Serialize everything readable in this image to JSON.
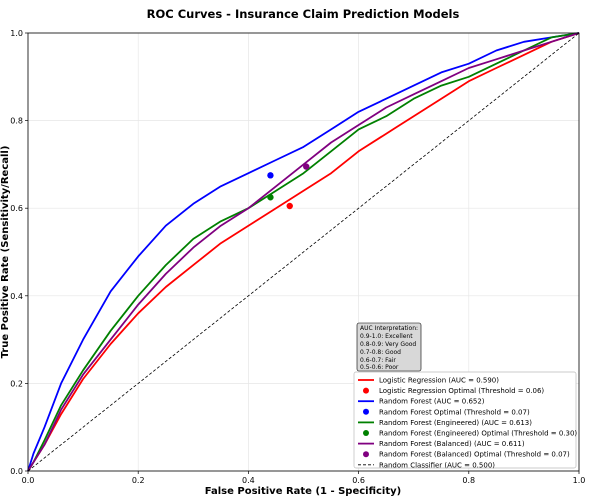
{
  "chart_data": {
    "type": "line",
    "title": "ROC Curves - Insurance Claim Prediction Models",
    "xlabel": "False Positive Rate (1 - Specificity)",
    "ylabel": "True Positive Rate (Sensitivity/Recall)",
    "xlim": [
      0.0,
      1.0
    ],
    "ylim": [
      0.0,
      1.0
    ],
    "xticks": [
      "0.0",
      "0.2",
      "0.4",
      "0.6",
      "0.8",
      "1.0"
    ],
    "yticks": [
      "0.0",
      "0.2",
      "0.4",
      "0.6",
      "0.8",
      "1.0"
    ],
    "grid": true,
    "legend_position": "lower-right",
    "auc_box": {
      "title": "AUC Interpretation:",
      "lines": [
        "0.9-1.0: Excellent",
        "0.8-0.9: Very Good",
        "0.7-0.8: Good",
        "0.6-0.7: Fair",
        "0.5-0.6: Poor"
      ]
    },
    "series": [
      {
        "name": "Logistic Regression (AUC = 0.590)",
        "color": "#ff0000",
        "x": [
          0,
          0.01,
          0.03,
          0.06,
          0.1,
          0.15,
          0.2,
          0.25,
          0.3,
          0.35,
          0.4,
          0.45,
          0.5,
          0.55,
          0.6,
          0.65,
          0.7,
          0.75,
          0.8,
          0.85,
          0.9,
          0.95,
          1.0
        ],
        "y": [
          0,
          0.02,
          0.06,
          0.13,
          0.21,
          0.29,
          0.36,
          0.42,
          0.47,
          0.52,
          0.56,
          0.6,
          0.64,
          0.68,
          0.73,
          0.77,
          0.81,
          0.85,
          0.89,
          0.92,
          0.95,
          0.98,
          1.0
        ]
      },
      {
        "name": "Logistic Regression Optimal (Threshold = 0.06)",
        "color": "#ff0000",
        "marker": true,
        "x": [
          0.475
        ],
        "y": [
          0.605
        ]
      },
      {
        "name": "Random Forest (AUC = 0.652)",
        "color": "#0000ff",
        "x": [
          0,
          0.01,
          0.03,
          0.06,
          0.1,
          0.15,
          0.2,
          0.25,
          0.3,
          0.35,
          0.4,
          0.45,
          0.5,
          0.55,
          0.6,
          0.65,
          0.7,
          0.75,
          0.8,
          0.85,
          0.9,
          0.95,
          1.0
        ],
        "y": [
          0,
          0.04,
          0.1,
          0.2,
          0.3,
          0.41,
          0.49,
          0.56,
          0.61,
          0.65,
          0.68,
          0.71,
          0.74,
          0.78,
          0.82,
          0.85,
          0.88,
          0.91,
          0.93,
          0.96,
          0.98,
          0.99,
          1.0
        ]
      },
      {
        "name": "Random Forest Optimal (Threshold = 0.07)",
        "color": "#0000ff",
        "marker": true,
        "x": [
          0.44
        ],
        "y": [
          0.675
        ]
      },
      {
        "name": "Random Forest (Engineered) (AUC = 0.613)",
        "color": "#008000",
        "x": [
          0,
          0.01,
          0.03,
          0.06,
          0.1,
          0.15,
          0.2,
          0.25,
          0.3,
          0.35,
          0.4,
          0.45,
          0.5,
          0.55,
          0.6,
          0.65,
          0.7,
          0.75,
          0.8,
          0.85,
          0.9,
          0.95,
          1.0
        ],
        "y": [
          0,
          0.02,
          0.07,
          0.15,
          0.23,
          0.32,
          0.4,
          0.47,
          0.53,
          0.57,
          0.6,
          0.64,
          0.68,
          0.73,
          0.78,
          0.81,
          0.85,
          0.88,
          0.9,
          0.93,
          0.96,
          0.99,
          1.0
        ]
      },
      {
        "name": "Random Forest (Engineered) Optimal (Threshold = 0.30)",
        "color": "#008000",
        "marker": true,
        "x": [
          0.44
        ],
        "y": [
          0.625
        ]
      },
      {
        "name": "Random Forest (Balanced) (AUC = 0.611)",
        "color": "#800080",
        "x": [
          0,
          0.01,
          0.03,
          0.06,
          0.1,
          0.15,
          0.2,
          0.25,
          0.3,
          0.35,
          0.4,
          0.45,
          0.5,
          0.55,
          0.6,
          0.65,
          0.7,
          0.75,
          0.8,
          0.85,
          0.9,
          0.95,
          1.0
        ],
        "y": [
          0,
          0.02,
          0.06,
          0.14,
          0.22,
          0.3,
          0.38,
          0.45,
          0.51,
          0.56,
          0.6,
          0.65,
          0.7,
          0.75,
          0.79,
          0.83,
          0.86,
          0.89,
          0.92,
          0.94,
          0.96,
          0.98,
          1.0
        ]
      },
      {
        "name": "Random Forest (Balanced) Optimal (Threshold = 0.07)",
        "color": "#800080",
        "marker": true,
        "x": [
          0.505
        ],
        "y": [
          0.695
        ]
      },
      {
        "name": "Random Classifier (AUC = 0.500)",
        "color": "#000000",
        "dashed": true,
        "x": [
          0,
          1
        ],
        "y": [
          0,
          1
        ]
      }
    ]
  }
}
